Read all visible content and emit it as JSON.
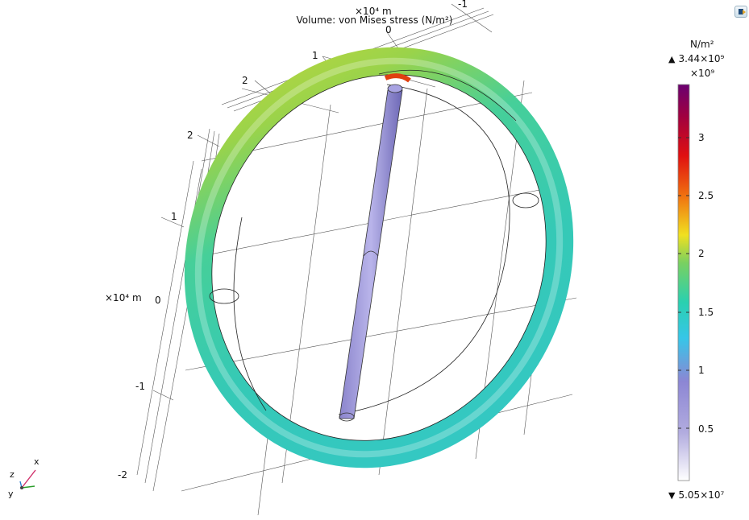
{
  "plot": {
    "title": "Volume: von Mises stress (N/m²)",
    "y_unit_label": "×10⁴ m",
    "x_unit_label": "×10⁴ m",
    "y_ticks": [
      "-1",
      "0",
      "1",
      "2"
    ],
    "z_ticks": [
      "2",
      "1",
      "0",
      "-1",
      "-2"
    ]
  },
  "colorbar": {
    "unit": "N/m²",
    "max_label": "3.44×10⁹",
    "scale_label": "×10⁹",
    "min_label": "5.05×10⁷",
    "ticks": [
      "3",
      "2.5",
      "2",
      "1.5",
      "1",
      "0.5"
    ],
    "max_value": 3440000000.0,
    "min_value": 50500000.0,
    "colors": [
      "#ffffff",
      "#8c86d4",
      "#36c6e8",
      "#2ad0b0",
      "#7ad060",
      "#f0e020",
      "#f07010",
      "#e01010",
      "#a00040",
      "#6a0070"
    ]
  },
  "triad": {
    "z": "z",
    "x": "x",
    "y": "y"
  },
  "toolbar": {
    "camera_icon": "camera-icon"
  }
}
